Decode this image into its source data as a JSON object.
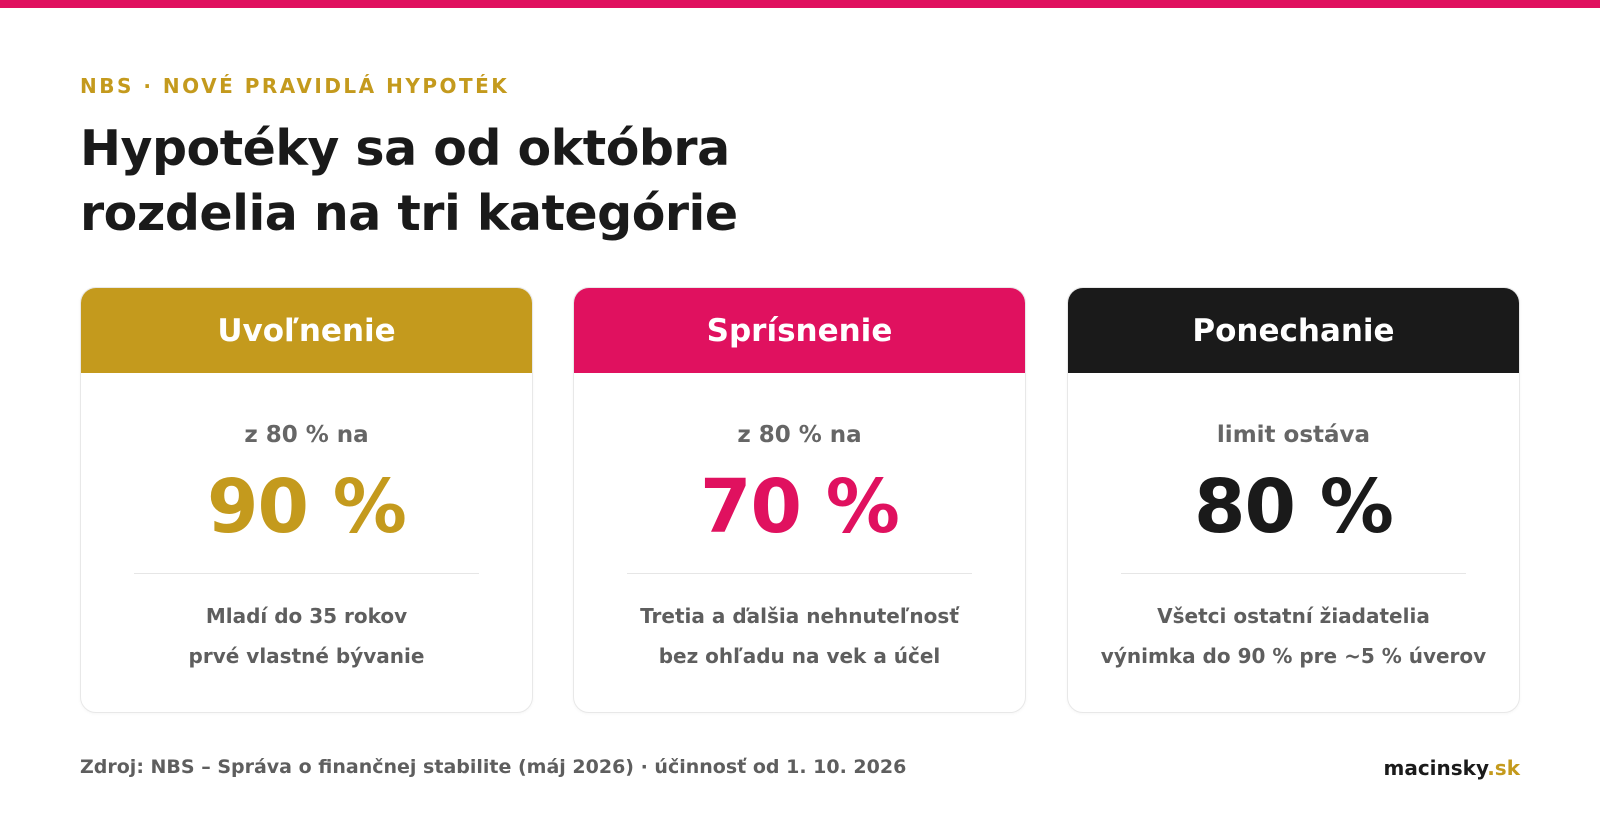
{
  "colors": {
    "gold": "#C49A1D",
    "pink": "#E0115F",
    "black": "#1A1A1A"
  },
  "kicker": "NBS · NOVÉ PRAVIDLÁ HYPOTÉK",
  "title": {
    "line1": "Hypotéky sa od októbra",
    "line2": "rozdelia na tri kategórie"
  },
  "cards": [
    {
      "header": "Uvoľnenie",
      "from": "z 80 % na",
      "value": "90 %",
      "line1": "Mladí do 35 rokov",
      "line2": "prvé vlastné bývanie",
      "color": "#C49A1D"
    },
    {
      "header": "Sprísnenie",
      "from": "z 80 % na",
      "value": "70 %",
      "line1": "Tretia a ďalšia nehnuteľnosť",
      "line2": "bez ohľadu na vek a účel",
      "color": "#E0115F"
    },
    {
      "header": "Ponechanie",
      "from": "limit ostáva",
      "value": "80 %",
      "line1": "Všetci ostatní žiadatelia",
      "line2": "výnimka do 90 % pre ~5 % úverov",
      "color": "#1A1A1A"
    }
  ],
  "footer": {
    "source": "Zdroj: NBS – Správa o finančnej stabilite (máj 2026) · účinnosť od 1. 10. 2026",
    "brand_name": "macinsky",
    "brand_tld": ".sk"
  }
}
